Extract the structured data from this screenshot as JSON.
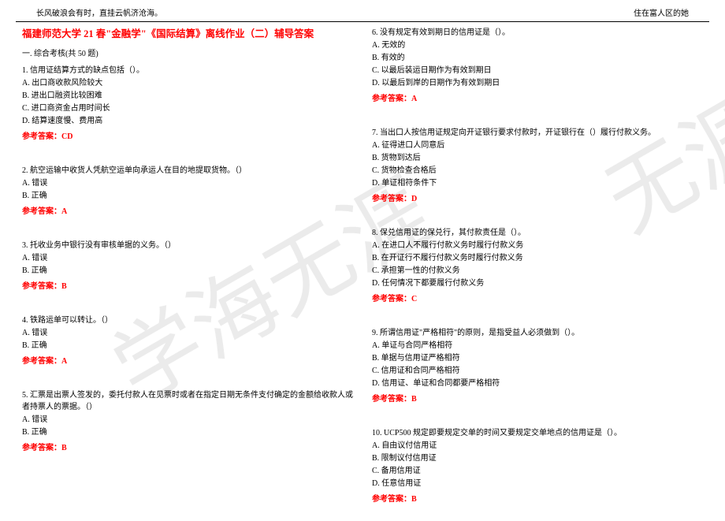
{
  "header": {
    "left": "长风破浪会有时，直挂云帆济沧海。",
    "right": "住在富人区的她"
  },
  "watermark": {
    "text1": "学海无涯",
    "text2": "无涯"
  },
  "title": "福建师范大学 21 春\"金融学\"《国际结算》离线作业（二）辅导答案",
  "sectionHeader": "一. 综合考核(共 50 题)",
  "leftQuestions": [
    {
      "num": "1",
      "text": "1. 信用证结算方式的缺点包括（）。",
      "options": [
        "A. 出口商收款风险较大",
        "B. 进出口融资比较困难",
        "C. 进口商资金占用时间长",
        "D. 结算速度慢、费用高"
      ],
      "answer": "参考答案：CD"
    },
    {
      "num": "2",
      "text": "2. 航空运输中收货人凭航空运单向承运人在目的地提取货物。（）",
      "options": [
        "A. 错误",
        "B. 正确"
      ],
      "answer": "参考答案：A"
    },
    {
      "num": "3",
      "text": "3. 托收业务中银行没有审核单据的义务。（）",
      "options": [
        "A. 错误",
        "B. 正确"
      ],
      "answer": "参考答案：B"
    },
    {
      "num": "4",
      "text": "4. 铁路运单可以转让。（）",
      "options": [
        "A. 错误",
        "B. 正确"
      ],
      "answer": "参考答案：A"
    },
    {
      "num": "5",
      "text": "5. 汇票是出票人签发的，委托付款人在见票时或者在指定日期无条件支付确定的金额给收款人或者持票人的票据。（）",
      "options": [
        "A. 错误",
        "B. 正确"
      ],
      "answer": "参考答案：B"
    }
  ],
  "rightQuestions": [
    {
      "num": "6",
      "text": "6. 没有规定有效到期日的信用证是（）。",
      "options": [
        "A. 无效的",
        "B. 有效的",
        "C. 以最后装运日期作为有效到期日",
        "D. 以最后到岸的日期作为有效到期日"
      ],
      "answer": "参考答案：A"
    },
    {
      "num": "7",
      "text": "7. 当出口人按信用证规定向开证银行要求付款时，开证银行在（）履行付款义务。",
      "options": [
        "A. 征得进口人同意后",
        "B. 货物到达后",
        "C. 货物检查合格后",
        "D. 单证相符条件下"
      ],
      "answer": "参考答案：D"
    },
    {
      "num": "8",
      "text": "8. 保兑信用证的保兑行，其付款责任是（）。",
      "options": [
        "A. 在进口人不履行付款义务时履行付款义务",
        "B. 在开证行不履行付款义务时履行付款义务",
        "C. 承担第一性的付款义务",
        "D. 任何情况下都要履行付款义务"
      ],
      "answer": "参考答案：C"
    },
    {
      "num": "9",
      "text": "9. 所谓信用证\"严格相符\"的原则，是指受益人必须做到（）。",
      "options": [
        "A. 单证与合同严格相符",
        "B. 单据与信用证严格相符",
        "C. 信用证和合同严格相符",
        "D. 信用证、单证和合同都要严格相符"
      ],
      "answer": "参考答案：B"
    },
    {
      "num": "10",
      "text": "10. UCP500 规定即要规定交单的时间又要规定交单地点的信用证是（）。",
      "options": [
        "A. 自由议付信用证",
        "B. 限制议付信用证",
        "C. 备用信用证",
        "D. 任意信用证"
      ],
      "answer": "参考答案：B"
    }
  ]
}
